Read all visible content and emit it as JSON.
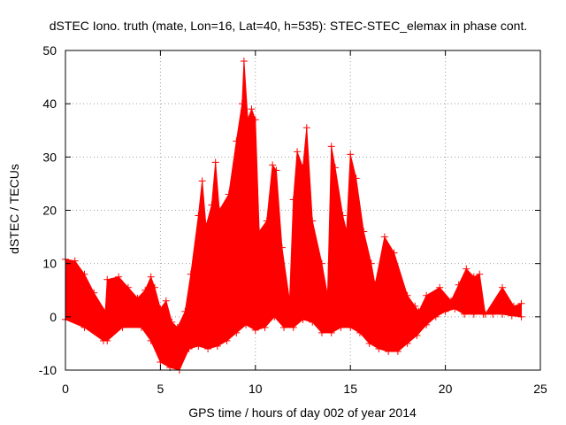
{
  "chart_data": {
    "type": "scatter",
    "title": "dSTEC Iono. truth (mate, Lon=16, Lat=40, h=535): STEC-STEC_elemax in phase cont.",
    "xlabel": "GPS time / hours of day 002 of year 2014",
    "ylabel": "dSTEC  / TECUs",
    "xlim": [
      0,
      25
    ],
    "ylim": [
      -10,
      50
    ],
    "xticks": [
      0,
      5,
      10,
      15,
      20,
      25
    ],
    "yticks": [
      -10,
      0,
      10,
      20,
      30,
      40,
      50
    ],
    "grid": true,
    "marker": "+",
    "color": "#ff0000",
    "upper_envelope": [
      [
        0.0,
        10.8
      ],
      [
        0.5,
        10.5
      ],
      [
        1.0,
        8.0
      ],
      [
        1.5,
        4.5
      ],
      [
        2.1,
        1.0
      ],
      [
        2.2,
        7.0
      ],
      [
        2.8,
        7.5
      ],
      [
        3.3,
        5.5
      ],
      [
        3.8,
        3.5
      ],
      [
        4.2,
        5.0
      ],
      [
        4.5,
        7.5
      ],
      [
        4.7,
        5.5
      ],
      [
        5.0,
        1.5
      ],
      [
        5.3,
        3.0
      ],
      [
        5.6,
        -1.0
      ],
      [
        5.9,
        -2.0
      ],
      [
        6.3,
        1.0
      ],
      [
        6.6,
        8.0
      ],
      [
        7.0,
        19.0
      ],
      [
        7.2,
        25.5
      ],
      [
        7.4,
        17.0
      ],
      [
        7.7,
        21.0
      ],
      [
        7.9,
        29.0
      ],
      [
        8.1,
        20.0
      ],
      [
        8.6,
        23.0
      ],
      [
        9.0,
        33.0
      ],
      [
        9.3,
        40.0
      ],
      [
        9.4,
        48.0
      ],
      [
        9.6,
        37.0
      ],
      [
        9.8,
        39.0
      ],
      [
        10.0,
        37.0
      ],
      [
        10.2,
        16.0
      ],
      [
        10.6,
        18.0
      ],
      [
        10.9,
        28.5
      ],
      [
        11.1,
        27.5
      ],
      [
        11.4,
        13.0
      ],
      [
        11.8,
        3.0
      ],
      [
        12.0,
        22.0
      ],
      [
        12.2,
        31.0
      ],
      [
        12.5,
        28.0
      ],
      [
        12.7,
        35.5
      ],
      [
        13.0,
        18.0
      ],
      [
        13.5,
        10.0
      ],
      [
        13.8,
        4.0
      ],
      [
        14.0,
        32.0
      ],
      [
        14.2,
        28.0
      ],
      [
        14.6,
        19.0
      ],
      [
        14.8,
        16.0
      ],
      [
        15.0,
        30.5
      ],
      [
        15.3,
        26.0
      ],
      [
        15.7,
        16.0
      ],
      [
        16.1,
        10.0
      ],
      [
        16.3,
        6.0
      ],
      [
        16.8,
        15.0
      ],
      [
        17.3,
        12.0
      ],
      [
        18.0,
        4.0
      ],
      [
        18.4,
        2.0
      ],
      [
        18.6,
        1.0
      ],
      [
        19.0,
        4.0
      ],
      [
        19.7,
        5.5
      ],
      [
        20.3,
        3.0
      ],
      [
        20.7,
        6.0
      ],
      [
        21.1,
        9.0
      ],
      [
        21.5,
        7.5
      ],
      [
        21.8,
        8.0
      ],
      [
        22.1,
        0.5
      ],
      [
        23.0,
        5.5
      ],
      [
        23.6,
        2.0
      ],
      [
        24.0,
        2.5
      ]
    ],
    "lower_envelope": [
      [
        0.0,
        -0.5
      ],
      [
        1.0,
        -2.0
      ],
      [
        2.0,
        -4.5
      ],
      [
        2.2,
        -4.5
      ],
      [
        3.0,
        -2.0
      ],
      [
        4.0,
        -2.0
      ],
      [
        4.5,
        -4.5
      ],
      [
        5.0,
        -8.5
      ],
      [
        5.5,
        -9.5
      ],
      [
        6.0,
        -10.0
      ],
      [
        6.5,
        -6.0
      ],
      [
        7.0,
        -5.5
      ],
      [
        7.5,
        -6.0
      ],
      [
        8.0,
        -5.5
      ],
      [
        8.5,
        -4.5
      ],
      [
        9.0,
        -3.0
      ],
      [
        9.5,
        -1.5
      ],
      [
        10.0,
        -2.5
      ],
      [
        10.5,
        -2.0
      ],
      [
        11.0,
        0.0
      ],
      [
        11.5,
        -2.0
      ],
      [
        12.0,
        -2.0
      ],
      [
        12.5,
        -0.5
      ],
      [
        13.0,
        -1.0
      ],
      [
        13.5,
        -3.0
      ],
      [
        14.0,
        -3.0
      ],
      [
        14.5,
        -2.0
      ],
      [
        15.0,
        -2.0
      ],
      [
        15.5,
        -3.0
      ],
      [
        16.0,
        -5.0
      ],
      [
        16.5,
        -6.0
      ],
      [
        17.0,
        -6.5
      ],
      [
        17.5,
        -6.5
      ],
      [
        18.0,
        -5.0
      ],
      [
        18.5,
        -3.5
      ],
      [
        19.0,
        -1.5
      ],
      [
        19.5,
        0.0
      ],
      [
        20.0,
        1.0
      ],
      [
        20.5,
        1.5
      ],
      [
        21.0,
        0.5
      ],
      [
        21.5,
        0.5
      ],
      [
        22.0,
        0.5
      ],
      [
        22.5,
        0.5
      ],
      [
        23.0,
        0.5
      ],
      [
        23.5,
        0.2
      ],
      [
        24.0,
        0.0
      ]
    ]
  }
}
